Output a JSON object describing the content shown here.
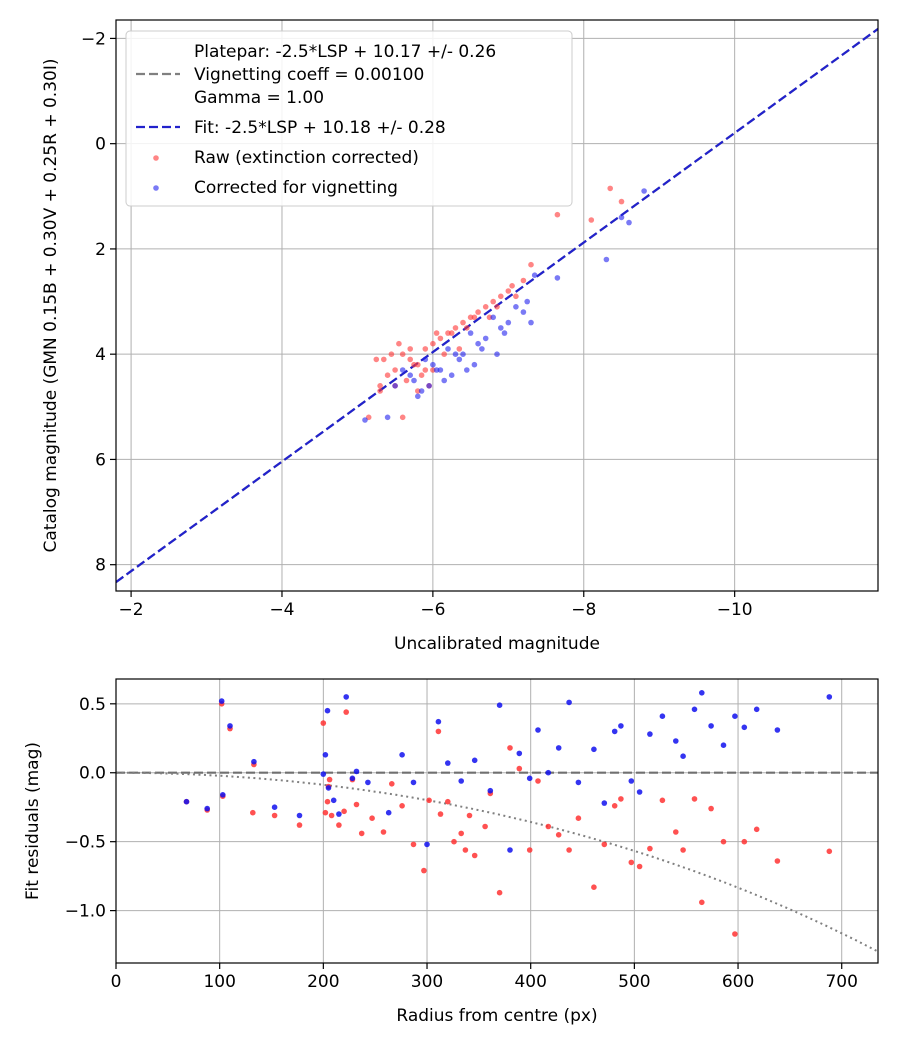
{
  "chart_data": [
    {
      "type": "scatter",
      "xlabel": "Uncalibrated magnitude",
      "ylabel": "Catalog magnitude (GMN 0.15B + 0.30V + 0.25R + 0.30I)",
      "xlim": [
        -1.8,
        -11.9
      ],
      "ylim": [
        8.5,
        -2.35
      ],
      "xticks": [
        -2,
        -4,
        -6,
        -8,
        -10
      ],
      "xtick_labels": [
        "−2",
        "−4",
        "−6",
        "−8",
        "−10"
      ],
      "yticks": [
        -2,
        0,
        2,
        4,
        6,
        8
      ],
      "ytick_labels": [
        "−2",
        "0",
        "2",
        "4",
        "6",
        "8"
      ],
      "grid": true,
      "legend_location": "upper-left",
      "legend": {
        "platepar_label_lines": [
          "Platepar: -2.5*LSP + 10.17 +/- 0.26",
          "Vignetting coeff = 0.00100",
          "Gamma = 1.00"
        ],
        "fit_label": "Fit: -2.5*LSP + 10.18 +/- 0.28",
        "raw_label": "Raw (extinction corrected)",
        "corrected_label": "Corrected for vignetting"
      },
      "lines": [
        {
          "name": "platepar",
          "style": "dashed",
          "color": "#808080",
          "x": [
            -1.8,
            -11.9
          ],
          "y": [
            8.33,
            -2.18
          ]
        },
        {
          "name": "fit",
          "style": "dashed",
          "color": "#2222cc",
          "x": [
            -1.8,
            -11.9
          ],
          "y": [
            8.33,
            -2.18
          ]
        }
      ],
      "series": [
        {
          "name": "raw",
          "color": "#ff3333",
          "x": [
            -8.35,
            -8.5,
            -7.65,
            -7.3,
            -8.1,
            -5.15,
            -5.5,
            -5.7,
            -5.3,
            -5.6,
            -5.9,
            -6.2,
            -6.5,
            -6.8,
            -7.0,
            -7.2,
            -5.4,
            -5.8,
            -6.0,
            -6.3,
            -6.6,
            -5.5,
            -5.9,
            -6.4,
            -5.35,
            -5.65,
            -6.1,
            -6.7,
            -7.1,
            -5.45,
            -5.75,
            -6.05,
            -6.35,
            -6.9,
            -5.25,
            -5.55,
            -5.85,
            -6.15,
            -6.45,
            -6.75,
            -7.05,
            -5.6,
            -6.0,
            -6.25,
            -6.55,
            -5.95,
            -5.7,
            -6.85,
            -5.3,
            -5.8
          ],
          "y": [
            0.85,
            1.1,
            1.35,
            2.3,
            1.45,
            5.2,
            4.3,
            4.1,
            4.7,
            4.0,
            3.9,
            3.6,
            3.3,
            3.0,
            2.8,
            2.6,
            4.4,
            4.2,
            3.8,
            3.5,
            3.2,
            4.6,
            4.3,
            3.4,
            4.1,
            4.5,
            3.7,
            3.1,
            2.9,
            4.0,
            4.2,
            3.6,
            3.9,
            2.9,
            4.1,
            3.8,
            4.4,
            4.0,
            3.5,
            3.3,
            2.7,
            5.2,
            4.3,
            3.6,
            3.3,
            4.6,
            3.9,
            3.1,
            4.6,
            4.7
          ]
        },
        {
          "name": "corrected",
          "color": "#2222ee",
          "x": [
            -8.8,
            -8.6,
            -8.5,
            -8.3,
            -7.65,
            -7.35,
            -5.1,
            -5.5,
            -5.8,
            -6.1,
            -6.4,
            -6.7,
            -7.0,
            -7.25,
            -5.6,
            -5.9,
            -6.2,
            -6.5,
            -6.8,
            -7.1,
            -5.7,
            -6.0,
            -6.3,
            -6.6,
            -6.9,
            -5.4,
            -5.75,
            -6.05,
            -6.35,
            -6.65,
            -6.95,
            -7.2,
            -5.95,
            -6.25,
            -6.55,
            -6.85,
            -7.3,
            -5.85,
            -6.15,
            -6.45
          ],
          "y": [
            0.9,
            1.5,
            1.4,
            2.2,
            2.55,
            2.5,
            5.25,
            4.6,
            4.8,
            4.3,
            4.0,
            3.7,
            3.4,
            3.0,
            4.3,
            4.1,
            3.9,
            3.6,
            3.3,
            3.1,
            4.4,
            4.2,
            4.0,
            3.8,
            3.5,
            5.2,
            4.5,
            4.3,
            4.1,
            3.9,
            3.6,
            3.2,
            4.6,
            4.4,
            4.2,
            4.0,
            3.4,
            4.7,
            4.5,
            4.3
          ]
        }
      ]
    },
    {
      "type": "scatter",
      "xlabel": "Radius from centre (px)",
      "ylabel": "Fit residuals (mag)",
      "xlim": [
        0,
        735
      ],
      "ylim": [
        -1.38,
        0.68
      ],
      "xticks": [
        0,
        100,
        200,
        300,
        400,
        500,
        600,
        700
      ],
      "xtick_labels": [
        "0",
        "100",
        "200",
        "300",
        "400",
        "500",
        "600",
        "700"
      ],
      "yticks": [
        0.5,
        0.0,
        -0.5,
        -1.0
      ],
      "ytick_labels": [
        "0.5",
        "0.0",
        "−0.5",
        "−1.0"
      ],
      "grid": true,
      "lines": [
        {
          "name": "zero",
          "style": "dashed",
          "color": "#707070",
          "x": [
            0,
            735
          ],
          "y": [
            0,
            0
          ]
        },
        {
          "name": "vignetting",
          "style": "dotted",
          "color": "#808080",
          "function": "-2.5*log10(cos(0.001*r)^4)"
        }
      ],
      "series": [
        {
          "name": "raw",
          "color": "#ff3333",
          "x": [
            68,
            88,
            102,
            103,
            110,
            132,
            133,
            153,
            177,
            200,
            202,
            204,
            205,
            206,
            208,
            215,
            220,
            222,
            228,
            232,
            237,
            247,
            258,
            266,
            276,
            287,
            297,
            302,
            311,
            313,
            320,
            326,
            333,
            337,
            341,
            346,
            356,
            361,
            370,
            380,
            389,
            399,
            407,
            417,
            427,
            437,
            446,
            461,
            471,
            481,
            487,
            497,
            505,
            515,
            527,
            540,
            547,
            558,
            565,
            574,
            586,
            597,
            606,
            618,
            638,
            688
          ],
          "y": [
            -0.21,
            -0.27,
            0.5,
            -0.17,
            0.32,
            -0.29,
            0.06,
            -0.31,
            -0.38,
            0.36,
            -0.29,
            -0.21,
            -0.1,
            -0.05,
            -0.31,
            -0.38,
            -0.28,
            0.44,
            -0.05,
            -0.23,
            -0.44,
            -0.33,
            -0.43,
            -0.08,
            -0.24,
            -0.52,
            -0.71,
            -0.2,
            0.3,
            -0.3,
            -0.21,
            -0.5,
            -0.44,
            -0.56,
            -0.31,
            -0.6,
            -0.39,
            -0.15,
            -0.87,
            0.18,
            0.03,
            -0.56,
            -0.06,
            -0.39,
            -0.45,
            -0.56,
            -0.33,
            -0.83,
            -0.52,
            -0.24,
            -0.19,
            -0.65,
            -0.68,
            -0.55,
            -0.2,
            -0.43,
            -0.56,
            -0.19,
            -0.94,
            -0.26,
            -0.5,
            -1.17,
            -0.5,
            -0.41,
            -0.64,
            -0.57
          ]
        },
        {
          "name": "corrected",
          "color": "#1111ee",
          "x": [
            68,
            88,
            102,
            103,
            110,
            133,
            153,
            177,
            200,
            202,
            204,
            205,
            210,
            215,
            222,
            228,
            232,
            243,
            263,
            276,
            287,
            300,
            311,
            320,
            333,
            346,
            361,
            370,
            380,
            389,
            399,
            407,
            417,
            427,
            437,
            446,
            461,
            471,
            481,
            487,
            497,
            505,
            515,
            527,
            540,
            547,
            558,
            565,
            574,
            586,
            597,
            606,
            618,
            638,
            688
          ],
          "y": [
            -0.21,
            -0.26,
            0.52,
            -0.16,
            0.34,
            0.08,
            -0.25,
            -0.31,
            -0.01,
            0.13,
            0.45,
            -0.11,
            -0.2,
            -0.3,
            0.55,
            -0.04,
            0.01,
            -0.07,
            -0.29,
            0.13,
            -0.07,
            -0.52,
            0.37,
            0.07,
            -0.06,
            0.09,
            -0.13,
            0.49,
            -0.56,
            0.14,
            -0.04,
            0.31,
            0.0,
            0.18,
            0.51,
            -0.07,
            0.17,
            -0.22,
            0.3,
            0.34,
            -0.06,
            -0.14,
            0.28,
            0.41,
            0.23,
            0.12,
            0.46,
            0.58,
            0.34,
            0.2,
            0.41,
            0.33,
            0.46,
            0.31,
            0.55
          ]
        }
      ]
    }
  ]
}
